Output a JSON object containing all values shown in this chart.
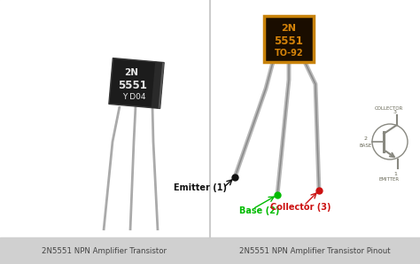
{
  "bg_color": "#f2f2f2",
  "caption_bg": "#d0d0d0",
  "caption_color": "#444444",
  "left_caption": "2N5551 NPN Amplifier Transistor",
  "right_caption": "2N5551 NPN Amplifier Transistor Pinout",
  "panel_bg": "#ffffff",
  "divider_color": "#cccccc",
  "body_left_color": "#1c1c1c",
  "body_left_edge": "#3a3a3a",
  "body_right_face": "#1a0d00",
  "body_right_edge": "#c8820a",
  "text_left_top": "2N",
  "text_left_mid": "5551",
  "text_left_bot": "Y D04",
  "text_left_top_color": "#e8e8e8",
  "text_left_mid_color": "#e8e8e8",
  "text_left_bot_color": "#e8e8e8",
  "text_right_top": "2N",
  "text_right_mid": "5551",
  "text_right_bot": "TO-92",
  "text_right_color": "#d4830a",
  "pin_color_left": "#aaaaaa",
  "pin_color_right": "#b8b8b8",
  "emitter_label": "Emitter (1)",
  "base_label": "Base (2)",
  "collector_label": "Collector (3)",
  "emitter_color": "#111111",
  "base_color": "#00bb00",
  "collector_color": "#cc1111",
  "sch_color": "#888880",
  "sch_label_color": "#666655",
  "collector_sch": "COLLECTOR",
  "base_sch": "BASE",
  "emitter_sch": "EMITTER"
}
